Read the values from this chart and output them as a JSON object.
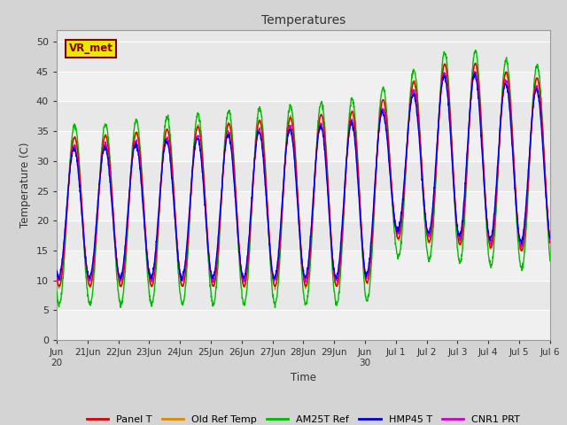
{
  "title": "Temperatures",
  "xlabel": "Time",
  "ylabel": "Temperature (C)",
  "ylim": [
    0,
    52
  ],
  "yticks": [
    0,
    5,
    10,
    15,
    20,
    25,
    30,
    35,
    40,
    45,
    50
  ],
  "fig_bg": "#d4d4d4",
  "plot_bg": "#e8e8e8",
  "annotation_text": "VR_met",
  "annotation_bg": "#e8e800",
  "annotation_border": "#8b0000",
  "series_colors": {
    "Panel T": "#dd0000",
    "Old Ref Temp": "#dd8800",
    "AM25T Ref": "#00bb00",
    "HMP45 T": "#0000dd",
    "CNR1 PRT": "#cc00cc"
  },
  "tick_labels": [
    "Jun\n20",
    "21Jun",
    "22Jun",
    "23Jun",
    "24Jun",
    "25Jun",
    "26Jun",
    "27Jun",
    "28Jun",
    "29Jun",
    "Jun\n30",
    "Jul 1",
    "Jul 2",
    "Jul 3",
    "Jul 4",
    "Jul 5",
    "Jul 6"
  ],
  "xlim": [
    0,
    16
  ],
  "seed": 99
}
